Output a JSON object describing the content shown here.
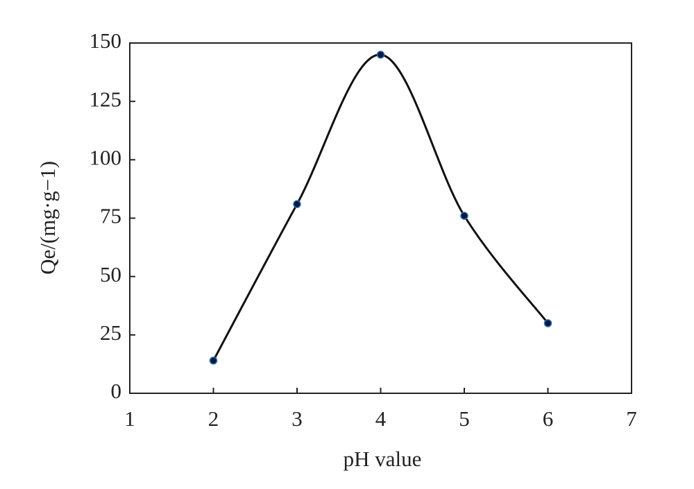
{
  "chart_data": {
    "type": "line",
    "xlabel": "pH value",
    "ylabel": "Qe/(mg·g−1)",
    "x": [
      2,
      3,
      4,
      5,
      6
    ],
    "series": [
      {
        "color": "#111111",
        "values": [
          14,
          81,
          145,
          76,
          30
        ]
      }
    ],
    "xlim": [
      1,
      7
    ],
    "xticks": [
      1,
      2,
      3,
      4,
      5,
      6,
      7
    ],
    "ylim": [
      0,
      150
    ],
    "yticks": [
      0,
      25,
      50,
      75,
      100,
      125,
      150
    ],
    "smooth": true,
    "markers": true,
    "grid": false
  }
}
